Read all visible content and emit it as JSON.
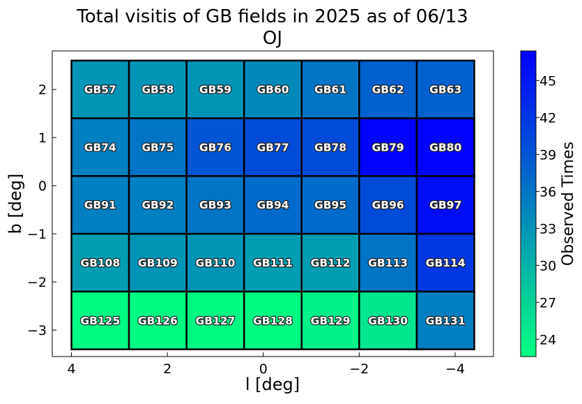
{
  "chart_data": {
    "type": "heatmap",
    "title": "Total visitis of GB fields in 2025 as of 06/13",
    "subtitle": "OJ",
    "xlabel": "l [deg]",
    "ylabel": "b [deg]",
    "xlim": [
      4.4,
      -4.8
    ],
    "ylim": [
      -3.55,
      2.8
    ],
    "x_ticks": [
      4,
      2,
      0,
      -2,
      -4
    ],
    "x_tick_labels": [
      "4",
      "2",
      "0",
      "−2",
      "−4"
    ],
    "y_ticks": [
      2,
      1,
      0,
      -1,
      -2,
      -3
    ],
    "y_tick_labels": [
      "2",
      "1",
      "0",
      "−1",
      "−2",
      "−3"
    ],
    "colorbar": {
      "label": "Observed Times",
      "min": 22.6,
      "max": 47.4,
      "ticks": [
        24,
        27,
        30,
        33,
        36,
        39,
        42,
        45
      ],
      "tick_labels": [
        "24",
        "27",
        "30",
        "33",
        "36",
        "39",
        "42",
        "45"
      ],
      "colormap": [
        "#00ff80",
        "#0000ff"
      ]
    },
    "columns_l": [
      {
        "left": 4.0,
        "right": 2.8
      },
      {
        "left": 2.8,
        "right": 1.6
      },
      {
        "left": 1.6,
        "right": 0.4
      },
      {
        "left": 0.4,
        "right": -0.8
      },
      {
        "left": -0.8,
        "right": -2.0
      },
      {
        "left": -2.0,
        "right": -3.2
      },
      {
        "left": -3.2,
        "right": -4.4
      }
    ],
    "rows_b": [
      {
        "top": 2.6,
        "bottom": 1.4
      },
      {
        "top": 1.4,
        "bottom": 0.2
      },
      {
        "top": 0.2,
        "bottom": -1.0
      },
      {
        "top": -1.0,
        "bottom": -2.2
      },
      {
        "top": -2.2,
        "bottom": -3.4
      }
    ],
    "fields": [
      [
        "GB57",
        "GB58",
        "GB59",
        "GB60",
        "GB61",
        "GB62",
        "GB63"
      ],
      [
        "GB74",
        "GB75",
        "GB76",
        "GB77",
        "GB78",
        "GB79",
        "GB80"
      ],
      [
        "GB91",
        "GB92",
        "GB93",
        "GB94",
        "GB95",
        "GB96",
        "GB97"
      ],
      [
        "GB108",
        "GB109",
        "GB110",
        "GB111",
        "GB112",
        "GB113",
        "GB114"
      ],
      [
        "GB125",
        "GB126",
        "GB127",
        "GB128",
        "GB129",
        "GB130",
        "GB131"
      ]
    ],
    "values": [
      [
        33,
        33,
        33,
        34,
        36,
        38,
        38
      ],
      [
        35,
        36,
        39,
        40,
        40,
        47,
        47
      ],
      [
        35,
        35,
        36,
        37,
        37,
        40,
        46
      ],
      [
        32,
        33,
        33,
        32,
        32,
        36,
        42
      ],
      [
        23,
        23,
        23,
        23,
        24,
        25,
        35
      ]
    ]
  }
}
